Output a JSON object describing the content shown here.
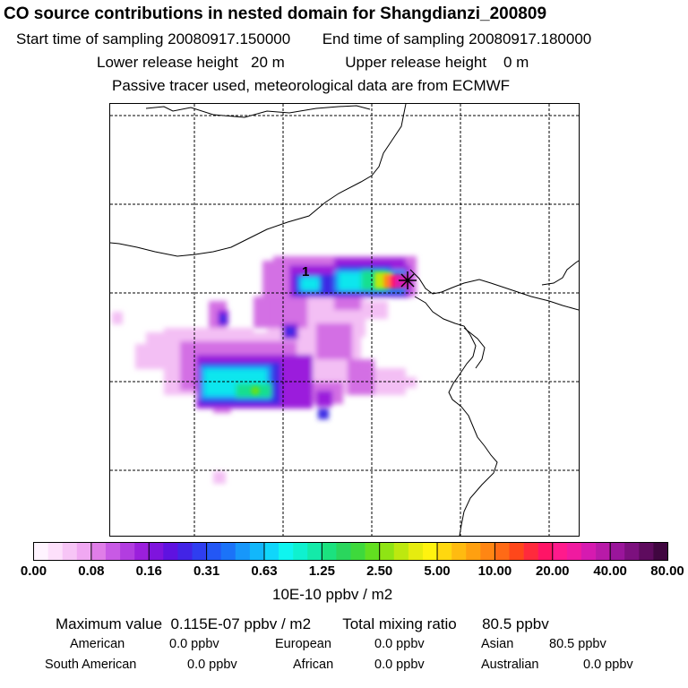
{
  "header": {
    "title": "CO  source contributions in nested domain for Shangdianzi_200809",
    "start_label": "Start time of sampling 20080917.150000",
    "end_label": "End time of sampling 20080917.180000",
    "lower_label": "Lower release height   20 m",
    "upper_label": "Upper release height    0 m",
    "note": "Passive tracer used, meteorological data are from ECMWF"
  },
  "map": {
    "marker_label": "1",
    "receptor_icon": "star-marker-icon",
    "grid": true
  },
  "colorbar": {
    "tick_labels": [
      "0.00",
      "0.08",
      "0.16",
      "0.31",
      "0.63",
      "1.25",
      "2.50",
      "5.00",
      "10.00",
      "20.00",
      "40.00",
      "80.00"
    ],
    "units": "10E-10 ppbv / m2",
    "colors": [
      "#fff4ff",
      "#fde0fb",
      "#f7c5f6",
      "#f0a8f2",
      "#e07ee8",
      "#c85ae5",
      "#b23de0",
      "#9b1fdc",
      "#7f14dd",
      "#5f12e0",
      "#4224e6",
      "#2f3ef0",
      "#2357f5",
      "#1b73f8",
      "#1797fa",
      "#12b7fb",
      "#10d6fb",
      "#0ff5f0",
      "#0ff1cf",
      "#14eaa9",
      "#1be27f",
      "#2ad65d",
      "#3ed93c",
      "#62df20",
      "#8fe414",
      "#bde80f",
      "#e6ec0f",
      "#fff30f",
      "#ffd80f",
      "#ffbb10",
      "#ffa010",
      "#ff8613",
      "#ff6a16",
      "#ff471a",
      "#ff2a3c",
      "#ff1466",
      "#ff1a8c",
      "#f01aa0",
      "#d61ab0",
      "#b81aa8",
      "#9a159b",
      "#7c107e",
      "#5e0b5e",
      "#400640"
    ]
  },
  "footer": {
    "max_line": "Maximum value  0.115E-07 ppbv / m2",
    "total_line": "Total mixing ratio      80.5 ppbv",
    "american_label": "American",
    "american_value": "0.0 ppbv",
    "european_label": "European",
    "european_value": "0.0 ppbv",
    "asian_label": "Asian",
    "asian_value": "80.5 ppbv",
    "south_american_label": "South American",
    "south_american_value": "0.0 ppbv",
    "african_label": "African",
    "african_value": "0.0 ppbv",
    "australian_label": "Australian",
    "australian_value": "0.0 ppbv"
  }
}
